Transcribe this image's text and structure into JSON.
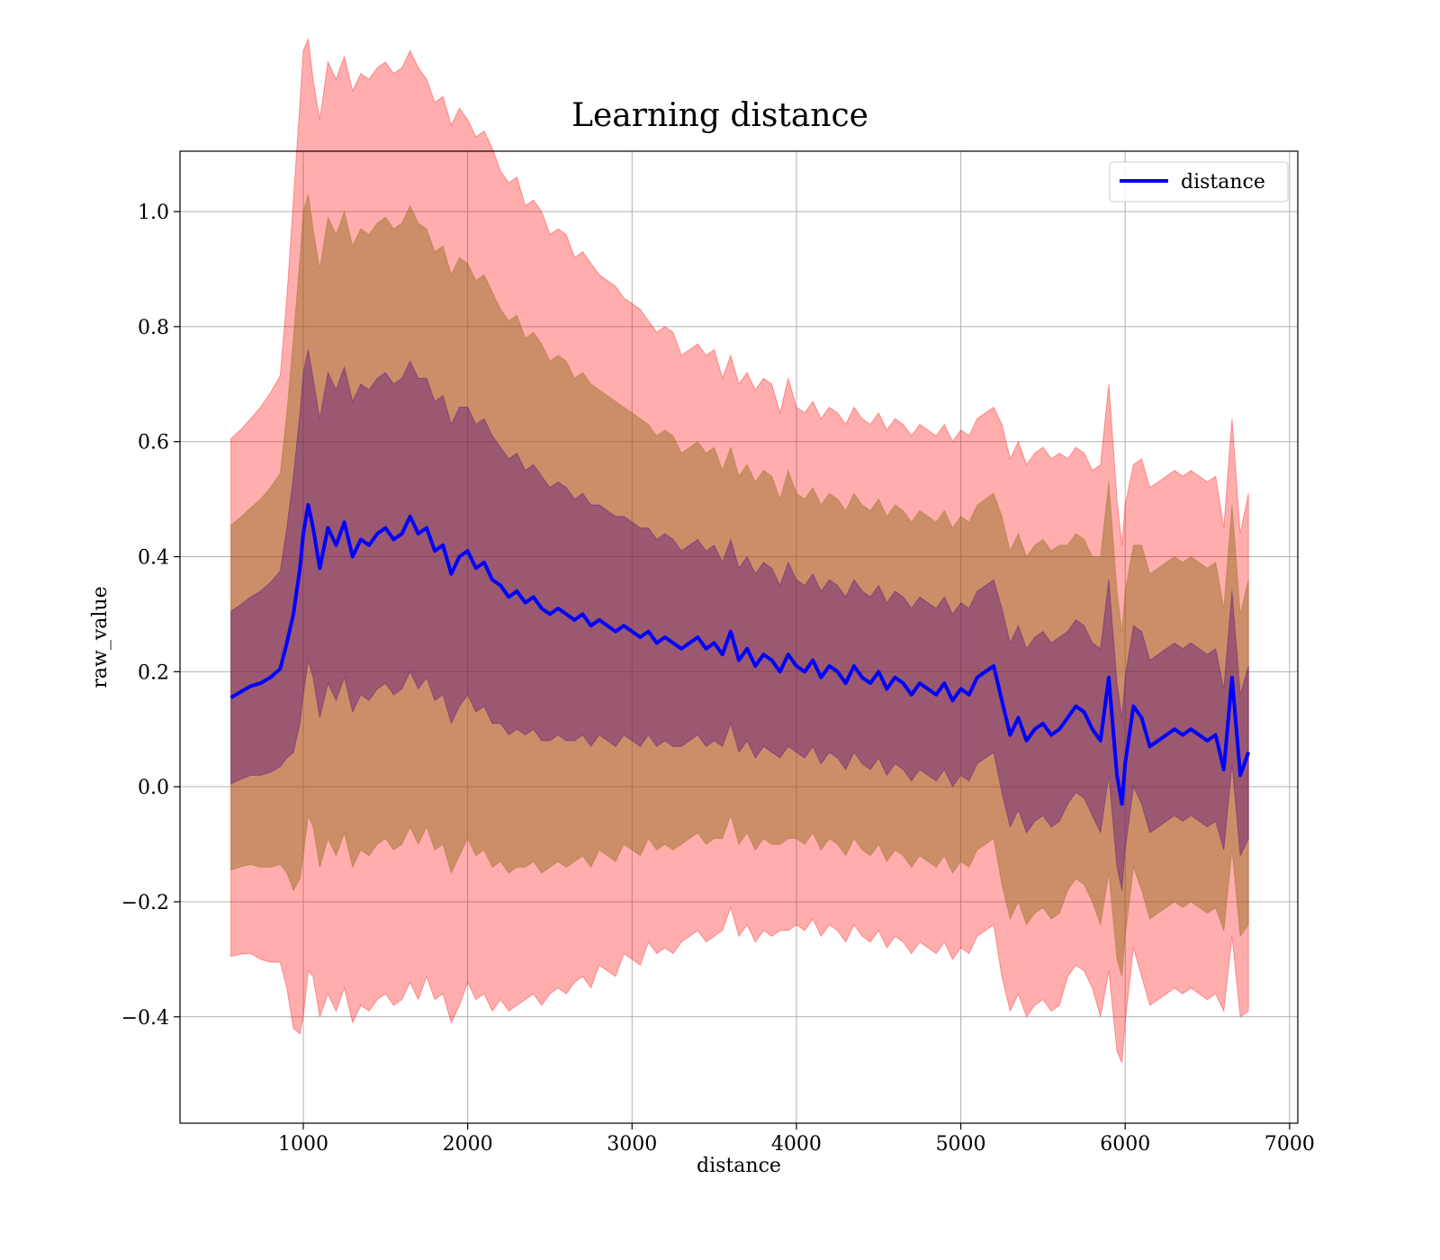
{
  "chart_data": {
    "type": "line",
    "title": "Learning distance",
    "xlabel": "distance",
    "ylabel": "raw_value",
    "xlim": [
      250,
      7050
    ],
    "ylim": [
      -0.585,
      1.105
    ],
    "x_ticks": [
      1000,
      2000,
      3000,
      4000,
      5000,
      6000,
      7000
    ],
    "x_tick_labels": [
      "1000",
      "2000",
      "3000",
      "4000",
      "5000",
      "6000",
      "7000"
    ],
    "y_ticks": [
      -0.4,
      -0.2,
      0.0,
      0.2,
      0.4,
      0.6,
      0.8,
      1.0
    ],
    "y_tick_labels": [
      "−0.4",
      "−0.2",
      "0.0",
      "0.2",
      "0.4",
      "0.6",
      "0.8",
      "1.0"
    ],
    "grid": true,
    "legend": {
      "position": "top-right",
      "entries": [
        "distance"
      ]
    },
    "colors": {
      "line": "#0000ff",
      "band_3std": "#ff0000",
      "band_2std": "#8b6914",
      "band_1std": "#4b0082"
    },
    "series": [
      {
        "name": "distance",
        "x": [
          560,
          620,
          680,
          740,
          800,
          860,
          900,
          940,
          980,
          1000,
          1030,
          1060,
          1100,
          1150,
          1200,
          1250,
          1300,
          1350,
          1400,
          1450,
          1500,
          1550,
          1600,
          1650,
          1700,
          1750,
          1800,
          1850,
          1900,
          1950,
          2000,
          2050,
          2100,
          2150,
          2200,
          2250,
          2300,
          2350,
          2400,
          2450,
          2500,
          2550,
          2600,
          2650,
          2700,
          2750,
          2800,
          2850,
          2900,
          2950,
          3000,
          3050,
          3100,
          3150,
          3200,
          3250,
          3300,
          3350,
          3400,
          3450,
          3500,
          3550,
          3600,
          3650,
          3700,
          3750,
          3800,
          3850,
          3900,
          3950,
          4000,
          4050,
          4100,
          4150,
          4200,
          4250,
          4300,
          4350,
          4400,
          4450,
          4500,
          4550,
          4600,
          4650,
          4700,
          4750,
          4800,
          4850,
          4900,
          4950,
          5000,
          5050,
          5100,
          5150,
          5200,
          5250,
          5300,
          5350,
          5400,
          5450,
          5500,
          5550,
          5600,
          5650,
          5700,
          5750,
          5800,
          5850,
          5900,
          5950,
          5980,
          6000,
          6050,
          6100,
          6150,
          6200,
          6250,
          6300,
          6350,
          6400,
          6450,
          6500,
          6550,
          6600,
          6650,
          6700,
          6750
        ],
        "mean": [
          0.155,
          0.165,
          0.175,
          0.18,
          0.19,
          0.205,
          0.25,
          0.3,
          0.38,
          0.44,
          0.49,
          0.45,
          0.38,
          0.45,
          0.42,
          0.46,
          0.4,
          0.43,
          0.42,
          0.44,
          0.45,
          0.43,
          0.44,
          0.47,
          0.44,
          0.45,
          0.41,
          0.42,
          0.37,
          0.4,
          0.41,
          0.38,
          0.39,
          0.36,
          0.35,
          0.33,
          0.34,
          0.32,
          0.33,
          0.31,
          0.3,
          0.31,
          0.3,
          0.29,
          0.3,
          0.28,
          0.29,
          0.28,
          0.27,
          0.28,
          0.27,
          0.26,
          0.27,
          0.25,
          0.26,
          0.25,
          0.24,
          0.25,
          0.26,
          0.24,
          0.25,
          0.23,
          0.27,
          0.22,
          0.24,
          0.21,
          0.23,
          0.22,
          0.2,
          0.23,
          0.21,
          0.2,
          0.22,
          0.19,
          0.21,
          0.2,
          0.18,
          0.21,
          0.19,
          0.18,
          0.2,
          0.17,
          0.19,
          0.18,
          0.16,
          0.18,
          0.17,
          0.16,
          0.18,
          0.15,
          0.17,
          0.16,
          0.19,
          0.2,
          0.21,
          0.15,
          0.09,
          0.12,
          0.08,
          0.1,
          0.11,
          0.09,
          0.1,
          0.12,
          0.14,
          0.13,
          0.1,
          0.08,
          0.19,
          0.02,
          -0.03,
          0.04,
          0.14,
          0.12,
          0.07,
          0.08,
          0.09,
          0.1,
          0.09,
          0.1,
          0.09,
          0.08,
          0.09,
          0.03,
          0.19,
          0.02,
          0.06
        ],
        "std": [
          0.15,
          0.152,
          0.155,
          0.16,
          0.165,
          0.17,
          0.2,
          0.24,
          0.27,
          0.28,
          0.27,
          0.26,
          0.26,
          0.27,
          0.27,
          0.27,
          0.27,
          0.27,
          0.27,
          0.27,
          0.27,
          0.27,
          0.27,
          0.27,
          0.27,
          0.26,
          0.26,
          0.26,
          0.26,
          0.26,
          0.25,
          0.25,
          0.25,
          0.25,
          0.24,
          0.24,
          0.24,
          0.23,
          0.23,
          0.23,
          0.22,
          0.22,
          0.22,
          0.21,
          0.21,
          0.21,
          0.2,
          0.2,
          0.2,
          0.19,
          0.19,
          0.19,
          0.18,
          0.18,
          0.18,
          0.18,
          0.17,
          0.17,
          0.17,
          0.17,
          0.17,
          0.16,
          0.16,
          0.16,
          0.16,
          0.16,
          0.16,
          0.16,
          0.15,
          0.16,
          0.15,
          0.15,
          0.15,
          0.15,
          0.15,
          0.15,
          0.15,
          0.15,
          0.15,
          0.15,
          0.15,
          0.15,
          0.15,
          0.15,
          0.15,
          0.15,
          0.15,
          0.15,
          0.15,
          0.15,
          0.15,
          0.15,
          0.15,
          0.15,
          0.15,
          0.16,
          0.16,
          0.16,
          0.16,
          0.16,
          0.16,
          0.16,
          0.16,
          0.15,
          0.15,
          0.15,
          0.15,
          0.16,
          0.17,
          0.16,
          0.15,
          0.15,
          0.14,
          0.15,
          0.15,
          0.15,
          0.15,
          0.15,
          0.15,
          0.15,
          0.15,
          0.15,
          0.15,
          0.14,
          0.15,
          0.14,
          0.15
        ]
      }
    ]
  }
}
